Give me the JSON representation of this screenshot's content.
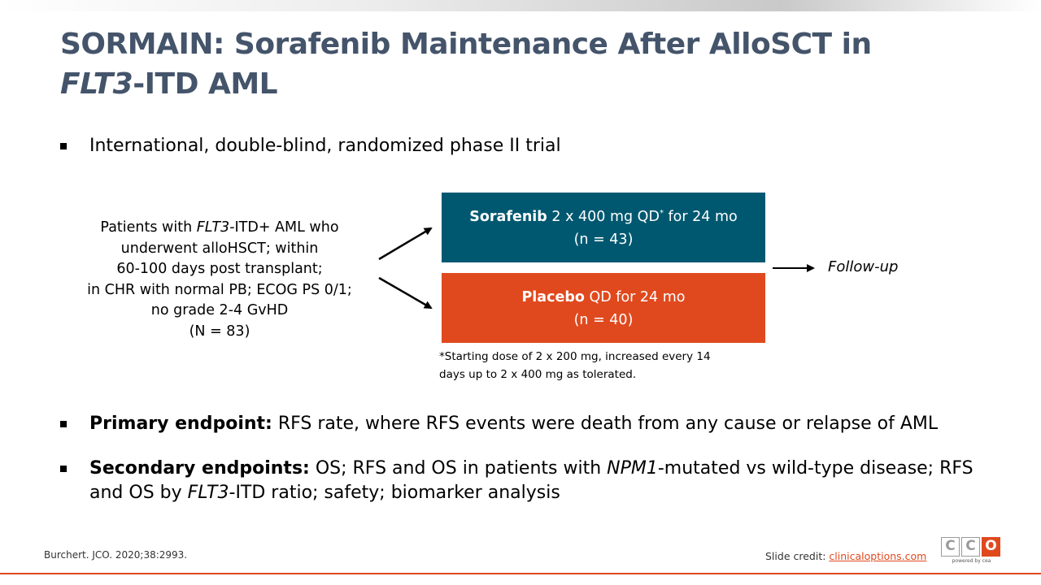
{
  "title": {
    "line1": "SORMAIN: Sorafenib Maintenance After AlloSCT in",
    "line2_italic": "FLT3",
    "line2_rest": "-ITD AML"
  },
  "bullets": {
    "b1": "International, double-blind, randomized phase II trial",
    "b2_bold": "Primary endpoint:",
    "b2_rest": " RFS rate, where RFS events were death from any cause or relapse of AML",
    "b3_bold": "Secondary endpoints:",
    "b3_t1": " OS; RFS and OS in patients with ",
    "b3_i1": "NPM1",
    "b3_t2": "-mutated vs wild-type disease; RFS and OS by ",
    "b3_i2": "FLT3",
    "b3_t3": "-ITD ratio; safety; biomarker analysis"
  },
  "patients": {
    "l1_pre": "Patients with ",
    "l1_italic": "FLT3",
    "l1_post": "-ITD+ AML who",
    "l2": "underwent alloHSCT; within",
    "l3": "60-100 days post transplant;",
    "l4": "in CHR with normal PB; ECOG PS 0/1;",
    "l5": "no grade 2-4 GvHD",
    "l6": "(N = 83)"
  },
  "arm_sorafenib": {
    "name": "Sorafenib",
    "dose": " 2 x 400 mg QD",
    "sup": "*",
    "dur": " for 24 mo",
    "n": "(n = 43)",
    "color": "#005870"
  },
  "arm_placebo": {
    "name": "Placebo",
    "dose": " QD for 24 mo",
    "n": "(n = 40)",
    "color": "#e0491e"
  },
  "footnote": {
    "l1": "*Starting dose of 2 x 200 mg, increased every 14",
    "l2": "days up to 2 x 400 mg as tolerated."
  },
  "followup": "Follow-up",
  "citation": "Burchert. JCO. 2020;38:2993.",
  "credit": {
    "label": "Slide credit: ",
    "link": "clinicaloptions.com"
  },
  "logo": {
    "letters": [
      "C",
      "C",
      "O"
    ],
    "powered": "powered by cea"
  }
}
